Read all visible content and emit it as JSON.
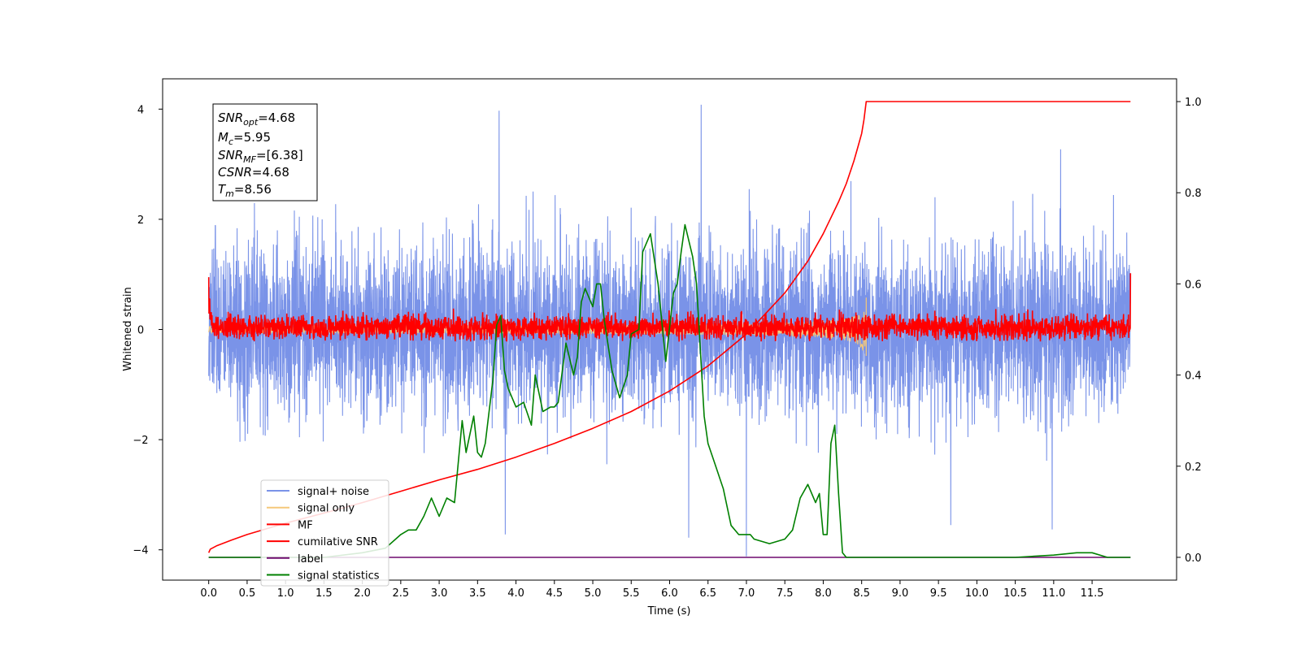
{
  "chart_data": {
    "type": "line",
    "xlabel": "Time (s)",
    "ylabel": "Whitened strain",
    "xlim": [
      -0.6,
      12.6
    ],
    "ylim": [
      -4.55,
      4.55
    ],
    "y2lim": [
      -0.05,
      1.05
    ],
    "x_ticks": [
      "0.0",
      "0.5",
      "1.0",
      "1.5",
      "2.0",
      "2.5",
      "3.0",
      "3.5",
      "4.0",
      "4.5",
      "5.0",
      "5.5",
      "6.0",
      "6.5",
      "7.0",
      "7.5",
      "8.0",
      "8.5",
      "9.0",
      "9.5",
      "10.0",
      "10.5",
      "11.0",
      "11.5"
    ],
    "y_ticks": [
      "4",
      "2",
      "0",
      "−2",
      "−4"
    ],
    "y2_ticks": [
      "1.0",
      "0.8",
      "0.6",
      "0.4",
      "0.2",
      "0.0"
    ],
    "annotation": {
      "snr_opt": {
        "sym": "SNR",
        "sub": "opt",
        "val": "=4.68"
      },
      "mc": {
        "sym": "M",
        "sub": "c",
        "val": "=5.95"
      },
      "snr_mf": {
        "sym": "SNR",
        "sub": "MF",
        "val": "=[6.38]"
      },
      "csnr": {
        "sym": "CSNR",
        "val": "=4.68"
      },
      "tm": {
        "sym": "T",
        "sub": "m",
        "val": "=8.56"
      }
    },
    "legend_position": "lower-left",
    "series": [
      {
        "name": "signal+ noise",
        "color": "#7a93e8",
        "axis": "left",
        "description_values": {
          "x_range": [
            0.0,
            12.0
          ],
          "typical_envelope": [
            -2.3,
            2.3
          ],
          "peak_values": [
            [
              3.78,
              3.97
            ],
            [
              6.41,
              4.08
            ],
            [
              11.09,
              3.27
            ],
            [
              7.0,
              -4.12
            ],
            [
              3.86,
              -3.72
            ],
            [
              6.25,
              -3.78
            ],
            [
              9.66,
              -3.55
            ],
            [
              10.98,
              -3.63
            ]
          ]
        }
      },
      {
        "name": "signal only",
        "color": "#f5c87a",
        "axis": "left",
        "description_values": {
          "x_range": [
            0.0,
            8.56
          ],
          "peak_values": [
            [
              8.56,
              0.58
            ],
            [
              8.56,
              -0.48
            ]
          ]
        }
      },
      {
        "name": "MF",
        "color": "#ff0000",
        "axis": "left",
        "description_values": {
          "x_range": [
            0.0,
            12.0
          ],
          "typical_envelope": [
            -0.22,
            0.38
          ],
          "edge_values": [
            [
              0.0,
              0.95
            ],
            [
              12.0,
              1.02
            ]
          ]
        }
      },
      {
        "name": "cumilative SNR",
        "color": "#ff0000",
        "axis": "right",
        "x": [
          0.0,
          0.02,
          0.1,
          0.3,
          0.5,
          1.0,
          1.5,
          2.0,
          2.5,
          3.0,
          3.5,
          4.0,
          4.5,
          5.0,
          5.5,
          6.0,
          6.5,
          7.0,
          7.5,
          7.8,
          8.0,
          8.2,
          8.3,
          8.4,
          8.45,
          8.5,
          8.53,
          8.56,
          12.0
        ],
        "values": [
          0.01,
          0.018,
          0.025,
          0.038,
          0.05,
          0.075,
          0.097,
          0.12,
          0.145,
          0.17,
          0.193,
          0.22,
          0.25,
          0.283,
          0.32,
          0.365,
          0.42,
          0.49,
          0.58,
          0.65,
          0.71,
          0.78,
          0.82,
          0.87,
          0.9,
          0.93,
          0.96,
          1.0,
          1.0
        ]
      },
      {
        "name": "label",
        "color": "#6e0a6e",
        "axis": "right",
        "x": [
          0.0,
          12.0
        ],
        "values": [
          0.0,
          0.0
        ]
      },
      {
        "name": "signal statistics",
        "color": "#008000",
        "axis": "right",
        "x": [
          0.0,
          0.5,
          1.0,
          1.5,
          2.0,
          2.3,
          2.5,
          2.6,
          2.7,
          2.8,
          2.9,
          3.0,
          3.1,
          3.2,
          3.3,
          3.35,
          3.45,
          3.5,
          3.55,
          3.6,
          3.7,
          3.75,
          3.8,
          3.85,
          3.9,
          4.0,
          4.1,
          4.2,
          4.25,
          4.35,
          4.45,
          4.5,
          4.55,
          4.65,
          4.75,
          4.8,
          4.85,
          4.9,
          5.0,
          5.05,
          5.1,
          5.15,
          5.25,
          5.35,
          5.45,
          5.5,
          5.6,
          5.65,
          5.75,
          5.85,
          5.95,
          6.05,
          6.1,
          6.15,
          6.2,
          6.3,
          6.35,
          6.45,
          6.5,
          6.6,
          6.7,
          6.8,
          6.9,
          7.0,
          7.05,
          7.1,
          7.3,
          7.5,
          7.6,
          7.7,
          7.8,
          7.9,
          7.95,
          8.0,
          8.05,
          8.1,
          8.15,
          8.2,
          8.25,
          8.3,
          8.35,
          8.4,
          8.5,
          9.0,
          10.0,
          10.5,
          11.0,
          11.3,
          11.5,
          11.7,
          11.9,
          12.0
        ],
        "values": [
          0.0,
          0.0,
          0.0,
          0.0,
          0.01,
          0.02,
          0.05,
          0.06,
          0.06,
          0.09,
          0.13,
          0.09,
          0.13,
          0.12,
          0.3,
          0.23,
          0.31,
          0.23,
          0.22,
          0.25,
          0.39,
          0.51,
          0.53,
          0.41,
          0.37,
          0.33,
          0.34,
          0.29,
          0.4,
          0.32,
          0.33,
          0.33,
          0.34,
          0.47,
          0.4,
          0.44,
          0.56,
          0.59,
          0.55,
          0.6,
          0.6,
          0.52,
          0.41,
          0.35,
          0.4,
          0.49,
          0.5,
          0.67,
          0.71,
          0.6,
          0.43,
          0.58,
          0.6,
          0.67,
          0.73,
          0.66,
          0.6,
          0.31,
          0.25,
          0.2,
          0.15,
          0.07,
          0.05,
          0.05,
          0.05,
          0.04,
          0.03,
          0.04,
          0.06,
          0.13,
          0.16,
          0.12,
          0.14,
          0.05,
          0.05,
          0.25,
          0.29,
          0.14,
          0.01,
          0.0,
          0.0,
          0.0,
          0.0,
          0.0,
          0.0,
          0.0,
          0.005,
          0.01,
          0.01,
          0.0,
          0.0,
          0.0
        ]
      }
    ]
  }
}
